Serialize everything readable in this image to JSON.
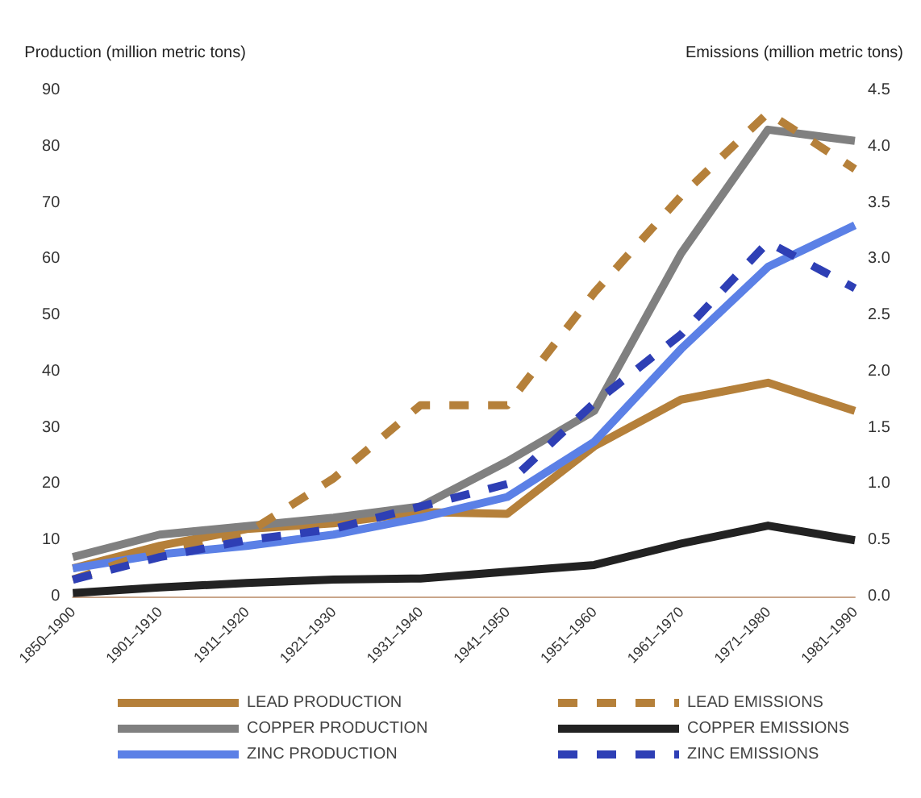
{
  "chart_data": {
    "type": "line",
    "ylabel": "Production (million metric tons)",
    "y2label": "Emissions (million metric tons)",
    "categories": [
      "1850–1900",
      "1901–1910",
      "1911–1920",
      "1921–1930",
      "1931–1940",
      "1941–1950",
      "1951–1960",
      "1961–1970",
      "1971–1980",
      "1981–1990"
    ],
    "ylim": [
      0,
      90
    ],
    "yticks": [
      0,
      10,
      20,
      30,
      40,
      50,
      60,
      70,
      80,
      90
    ],
    "y2lim": [
      0,
      4.5
    ],
    "y2ticks": [
      {
        "value": 0,
        "label": "0.0"
      },
      {
        "value": 0.5,
        "label": "0.5"
      },
      {
        "value": 1,
        "label": "1.0"
      },
      {
        "value": 1.5,
        "label": "1.5"
      },
      {
        "value": 2,
        "label": "2.0"
      },
      {
        "value": 2.5,
        "label": "2.5"
      },
      {
        "value": 3,
        "label": "3.0"
      },
      {
        "value": 3.5,
        "label": "3.5"
      },
      {
        "value": 4,
        "label": "4.0"
      },
      {
        "value": 4.5,
        "label": "4.5"
      }
    ],
    "grid": false,
    "legend": "bottom",
    "marker": "none",
    "series": [
      {
        "name": "LEAD PRODUCTION",
        "color": "#b5803a",
        "line_style": "solid",
        "values": [
          5,
          9,
          12,
          13,
          15,
          14.7,
          26.7,
          35,
          38,
          33
        ]
      },
      {
        "name": "COPPER PRODUCTION",
        "color": "#808080",
        "line_style": "solid",
        "values": [
          7,
          11,
          12.5,
          14,
          16,
          24,
          33,
          61,
          83,
          81
        ]
      },
      {
        "name": "ZINC PRODUCTION",
        "color": "#5b80e6",
        "line_style": "solid",
        "values": [
          5,
          7.5,
          9,
          11,
          14,
          17.7,
          27.5,
          44,
          58.6,
          66
        ]
      },
      {
        "name": "LEAD EMISSIONS",
        "color": "#b5803a",
        "line_style": "dashed",
        "axis": "y2",
        "values": [
          0.15,
          0.42,
          0.56,
          1.05,
          1.7,
          1.7,
          2.7,
          3.56,
          4.3,
          3.8
        ]
      },
      {
        "name": "COPPER EMISSIONS",
        "color": "#222222",
        "line_style": "solid",
        "axis": "y2",
        "values": [
          0.03,
          0.08,
          0.12,
          0.15,
          0.16,
          0.22,
          0.28,
          0.47,
          0.63,
          0.5
        ]
      },
      {
        "name": "ZINC EMISSIONS",
        "color": "#2e3fb5",
        "line_style": "dashed",
        "axis": "y2",
        "values": [
          0.15,
          0.35,
          0.5,
          0.6,
          0.8,
          1.0,
          1.72,
          2.33,
          3.15,
          2.74
        ]
      }
    ]
  }
}
